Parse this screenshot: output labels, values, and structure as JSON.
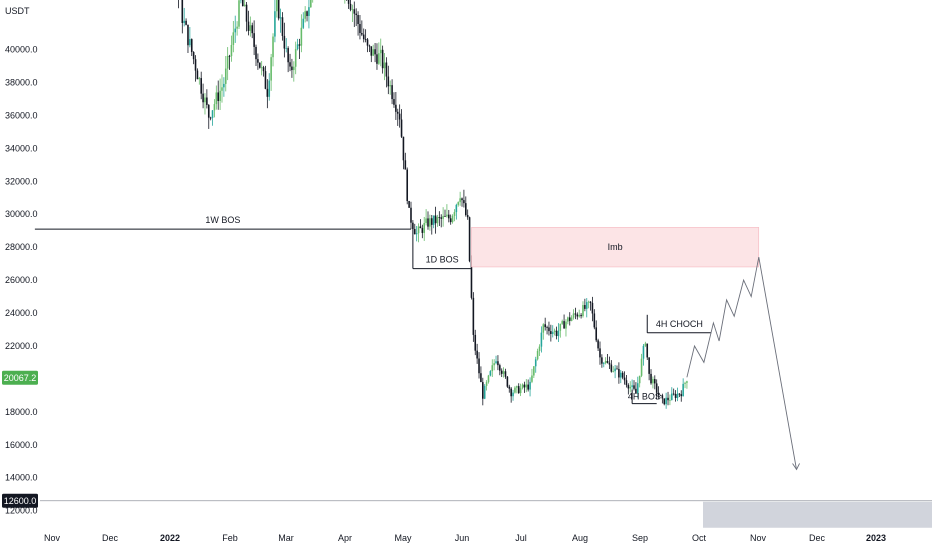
{
  "chart_data": {
    "type": "candlestick",
    "symbol_unit": "USDT",
    "y_ticks": [
      "40000.0",
      "38000.0",
      "36000.0",
      "34000.0",
      "32000.0",
      "30000.0",
      "28000.0",
      "26000.0",
      "24000.0",
      "22000.0",
      "18000.0",
      "16000.0",
      "14000.0",
      "12000.0"
    ],
    "x_ticks": [
      {
        "label": "Nov",
        "bold": false
      },
      {
        "label": "Dec",
        "bold": false
      },
      {
        "label": "2022",
        "bold": true
      },
      {
        "label": "Feb",
        "bold": false
      },
      {
        "label": "Mar",
        "bold": false
      },
      {
        "label": "Apr",
        "bold": false
      },
      {
        "label": "May",
        "bold": false
      },
      {
        "label": "Jun",
        "bold": false
      },
      {
        "label": "Jul",
        "bold": false
      },
      {
        "label": "Aug",
        "bold": false
      },
      {
        "label": "Sep",
        "bold": false
      },
      {
        "label": "Oct",
        "bold": false
      },
      {
        "label": "Nov",
        "bold": false
      },
      {
        "label": "Dec",
        "bold": false
      },
      {
        "label": "2023",
        "bold": true
      }
    ],
    "ylim": [
      11000,
      43000
    ],
    "current_price": "20067.2",
    "marked_level": "12600.0",
    "colors": {
      "up": "#26a69a",
      "up_light": "#66bb6a",
      "down": "#131722",
      "price_badge": "#4caf50",
      "level_badge": "#131722",
      "imbalance": "#fce4e6",
      "imbalance_border": "#f5b5bd"
    },
    "series": [
      {
        "date": "2021-12-06",
        "price": 47000
      },
      {
        "date": "2022-01-03",
        "price": 46500
      },
      {
        "date": "2022-01-10",
        "price": 42000
      },
      {
        "date": "2022-01-24",
        "price": 36000
      },
      {
        "date": "2022-02-01",
        "price": 38000
      },
      {
        "date": "2022-02-10",
        "price": 43000
      },
      {
        "date": "2022-02-24",
        "price": 37500
      },
      {
        "date": "2022-03-01",
        "price": 43000
      },
      {
        "date": "2022-03-08",
        "price": 38500
      },
      {
        "date": "2022-03-28",
        "price": 47000
      },
      {
        "date": "2022-04-07",
        "price": 43500
      },
      {
        "date": "2022-04-18",
        "price": 40000
      },
      {
        "date": "2022-04-25",
        "price": 39500
      },
      {
        "date": "2022-05-05",
        "price": 36000
      },
      {
        "date": "2022-05-10",
        "price": 30000
      },
      {
        "date": "2022-05-14",
        "price": 28800
      },
      {
        "date": "2022-05-20",
        "price": 29500
      },
      {
        "date": "2022-06-01",
        "price": 29800
      },
      {
        "date": "2022-06-06",
        "price": 31300
      },
      {
        "date": "2022-06-10",
        "price": 29500
      },
      {
        "date": "2022-06-13",
        "price": 22500
      },
      {
        "date": "2022-06-18",
        "price": 19000
      },
      {
        "date": "2022-06-25",
        "price": 21300
      },
      {
        "date": "2022-07-03",
        "price": 19200
      },
      {
        "date": "2022-07-13",
        "price": 19600
      },
      {
        "date": "2022-07-20",
        "price": 23200
      },
      {
        "date": "2022-07-27",
        "price": 22800
      },
      {
        "date": "2022-08-01",
        "price": 23500
      },
      {
        "date": "2022-08-14",
        "price": 24500
      },
      {
        "date": "2022-08-19",
        "price": 21300
      },
      {
        "date": "2022-08-31",
        "price": 20100
      },
      {
        "date": "2022-09-07",
        "price": 19100
      },
      {
        "date": "2022-09-12",
        "price": 22400
      },
      {
        "date": "2022-09-14",
        "price": 20200
      },
      {
        "date": "2022-09-21",
        "price": 18600
      },
      {
        "date": "2022-10-01",
        "price": 19200
      },
      {
        "date": "2022-10-04",
        "price": 20067
      }
    ],
    "projection": [
      {
        "date": "2022-10-04",
        "price": 20100
      },
      {
        "date": "2022-10-08",
        "price": 22000
      },
      {
        "date": "2022-10-13",
        "price": 21000
      },
      {
        "date": "2022-10-18",
        "price": 23400
      },
      {
        "date": "2022-10-21",
        "price": 22300
      },
      {
        "date": "2022-10-25",
        "price": 24800
      },
      {
        "date": "2022-10-29",
        "price": 23800
      },
      {
        "date": "2022-11-03",
        "price": 26000
      },
      {
        "date": "2022-11-07",
        "price": 25000
      },
      {
        "date": "2022-11-11",
        "price": 27400
      },
      {
        "date": "2022-12-01",
        "price": 14500
      }
    ],
    "annotations": {
      "bos_1w": {
        "label": "1W BOS",
        "price": 29100,
        "from": "2021-10-24",
        "to": "2022-05-11"
      },
      "bos_1d": {
        "label": "1D BOS",
        "price": 26700,
        "from": "2022-05-12",
        "to": "2022-06-12"
      },
      "imbalance": {
        "label": "Imb",
        "top": 29200,
        "bottom": 26800,
        "from": "2022-06-12",
        "to": "2022-11-11"
      },
      "choch_4h": {
        "label": "4H CHOCH",
        "price": 22800,
        "from": "2022-09-13",
        "to": "2022-10-17"
      },
      "bos_4h": {
        "label": "4H BOS",
        "price": 18500,
        "from": "2022-09-05",
        "to": "2022-09-18"
      }
    }
  }
}
